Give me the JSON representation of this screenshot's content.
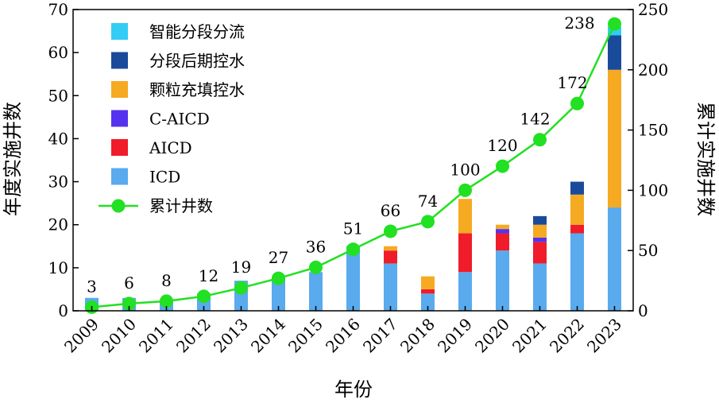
{
  "chart_data": {
    "type": "bar",
    "stacked": true,
    "categories": [
      "2009",
      "2010",
      "2011",
      "2012",
      "2013",
      "2014",
      "2015",
      "2016",
      "2017",
      "2018",
      "2019",
      "2020",
      "2021",
      "2022",
      "2023"
    ],
    "xlabel": "年份",
    "ylabel": "年度实施井数",
    "y2label": "累计实施井数",
    "ylim": [
      0,
      70
    ],
    "y2lim": [
      0,
      250
    ],
    "yticks": [
      0,
      10,
      20,
      30,
      40,
      50,
      60,
      70
    ],
    "y2ticks": [
      0,
      50,
      100,
      150,
      200,
      250
    ],
    "series": [
      {
        "name": "ICD",
        "color": "#5aaaee",
        "values": [
          3,
          3,
          2,
          4,
          7,
          8,
          9,
          15,
          11,
          4,
          9,
          14,
          11,
          18,
          24
        ]
      },
      {
        "name": "AICD",
        "color": "#f01c2a",
        "values": [
          0,
          0,
          0,
          0,
          0,
          0,
          0,
          0,
          3,
          1,
          9,
          4,
          5,
          2,
          0
        ]
      },
      {
        "name": "C-AICD",
        "color": "#5533ee",
        "values": [
          0,
          0,
          0,
          0,
          0,
          0,
          0,
          0,
          0,
          0,
          0,
          1,
          1,
          0,
          0
        ]
      },
      {
        "name": "颗粒充填控水",
        "color": "#f5aa22",
        "values": [
          0,
          0,
          0,
          0,
          0,
          0,
          0,
          0,
          1,
          3,
          8,
          1,
          3,
          7,
          32
        ]
      },
      {
        "name": "分段后期控水",
        "color": "#1a4b9b",
        "values": [
          0,
          0,
          0,
          0,
          0,
          0,
          0,
          0,
          0,
          0,
          0,
          0,
          2,
          3,
          8
        ]
      },
      {
        "name": "智能分段分流",
        "color": "#33ccf5",
        "values": [
          0,
          0,
          0,
          0,
          0,
          0,
          0,
          0,
          0,
          0,
          0,
          0,
          0,
          0,
          2
        ]
      }
    ],
    "line": {
      "name": "累计井数",
      "color": "#22e022",
      "axis": "right",
      "values": [
        3,
        6,
        8,
        12,
        19,
        27,
        36,
        51,
        66,
        74,
        100,
        120,
        142,
        172,
        238
      ],
      "labels": [
        "3",
        "6",
        "8",
        "12",
        "19",
        "27",
        "36",
        "51",
        "66",
        "74",
        "100",
        "120",
        "142",
        "172",
        "238"
      ]
    },
    "legend": {
      "placement": "top-left",
      "order": [
        "智能分段分流",
        "分段后期控水",
        "颗粒充填控水",
        "C-AICD",
        "AICD",
        "ICD",
        "累计井数"
      ]
    }
  }
}
